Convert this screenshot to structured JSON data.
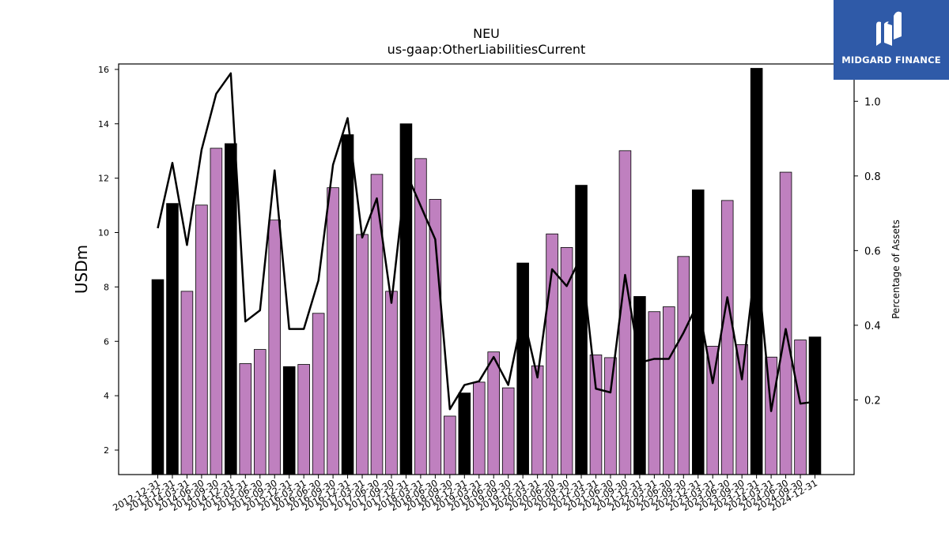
{
  "brand": {
    "name": "MIDGARD FINANCE",
    "bg_color": "#2f5aa8"
  },
  "chart_data": {
    "type": "bar",
    "title": "NEU",
    "subtitle": "us-gaap:OtherLiabilitiesCurrent",
    "ylabel": "USDm",
    "y2label": "Percentage of Assets",
    "ylim": [
      1.1,
      16.2
    ],
    "y2lim": [
      0.0,
      1.1
    ],
    "yticks": [
      2,
      4,
      6,
      8,
      10,
      12,
      14,
      16
    ],
    "y2ticks": [
      0.2,
      0.4,
      0.6,
      0.8,
      1.0
    ],
    "y2tick_labels": [
      "0.2",
      "0.4",
      "0.6",
      "0.8",
      "1.0"
    ],
    "grid": false,
    "colors": {
      "annual": "#000000",
      "quarterly": "#bf80bf",
      "line": "#000000"
    },
    "categories": [
      "2012-12-31",
      "2013-12-31",
      "2014-03-31",
      "2014-06-30",
      "2014-09-30",
      "2014-12-31",
      "2015-03-31",
      "2015-06-30",
      "2015-09-30",
      "2015-12-31",
      "2016-03-31",
      "2016-06-30",
      "2016-09-30",
      "2016-12-31",
      "2017-03-31",
      "2017-06-30",
      "2017-09-30",
      "2017-12-31",
      "2018-03-31",
      "2018-06-30",
      "2018-09-30",
      "2018-12-31",
      "2019-03-31",
      "2019-06-30",
      "2019-09-30",
      "2019-12-31",
      "2020-03-31",
      "2020-06-30",
      "2020-09-30",
      "2020-12-31",
      "2021-03-31",
      "2021-06-30",
      "2021-09-30",
      "2021-12-31",
      "2022-03-31",
      "2022-06-30",
      "2022-09-30",
      "2022-12-31",
      "2023-03-31",
      "2023-06-30",
      "2023-09-30",
      "2023-12-31",
      "2024-03-31",
      "2024-06-30",
      "2024-09-30",
      "2024-12-31"
    ],
    "values": [
      8.27,
      11.07,
      7.84,
      11.01,
      13.1,
      13.27,
      5.18,
      5.7,
      10.46,
      5.07,
      5.15,
      7.03,
      11.65,
      13.6,
      9.93,
      12.14,
      7.84,
      14.0,
      12.72,
      11.22,
      3.25,
      4.1,
      4.5,
      5.61,
      4.29,
      8.88,
      5.1,
      9.95,
      9.45,
      11.74,
      5.5,
      5.4,
      13.01,
      7.65,
      7.09,
      7.27,
      9.12,
      11.57,
      5.82,
      11.18,
      5.88,
      16.04,
      5.42,
      12.22,
      6.05,
      6.16
    ],
    "is_annual": [
      true,
      true,
      false,
      false,
      false,
      true,
      false,
      false,
      false,
      true,
      false,
      false,
      false,
      true,
      false,
      false,
      false,
      true,
      false,
      false,
      false,
      true,
      false,
      false,
      false,
      true,
      false,
      false,
      false,
      true,
      false,
      false,
      false,
      true,
      false,
      false,
      false,
      true,
      false,
      false,
      false,
      true,
      false,
      false,
      false,
      true
    ],
    "line_values": [
      0.66,
      0.835,
      0.615,
      0.87,
      1.02,
      1.075,
      0.41,
      0.44,
      0.815,
      0.39,
      0.39,
      0.52,
      0.83,
      0.955,
      0.635,
      0.74,
      0.46,
      0.81,
      0.72,
      0.63,
      0.175,
      0.24,
      0.25,
      0.315,
      0.24,
      0.43,
      0.26,
      0.55,
      0.505,
      0.585,
      0.23,
      0.22,
      0.535,
      0.3,
      0.31,
      0.31,
      0.38,
      0.46,
      0.245,
      0.475,
      0.255,
      0.59,
      0.17,
      0.39,
      0.19,
      0.195
    ]
  }
}
